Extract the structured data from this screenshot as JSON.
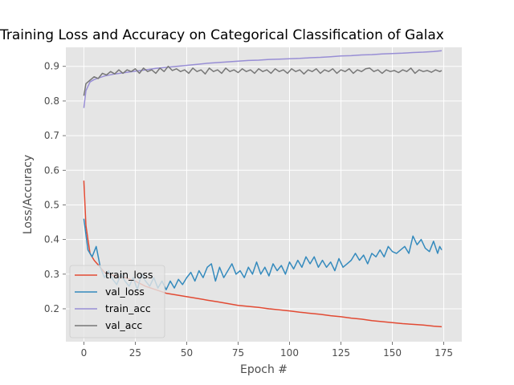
{
  "chart_data": {
    "type": "line",
    "title": "Training Loss and Accuracy on Categorical Classification of Galax",
    "xlabel": "Epoch #",
    "ylabel": "Loss/Accuracy",
    "xlim": [
      -8.75,
      183.75
    ],
    "ylim": [
      0.105,
      0.955
    ],
    "xticks": [
      0,
      25,
      50,
      75,
      100,
      125,
      150,
      175
    ],
    "xtick_labels": [
      "0",
      "25",
      "50",
      "75",
      "100",
      "125",
      "150",
      "175"
    ],
    "yticks": [
      0.2,
      0.3,
      0.4,
      0.5,
      0.6,
      0.7,
      0.8,
      0.9
    ],
    "ytick_labels": [
      "0.2",
      "0.3",
      "0.4",
      "0.5",
      "0.6",
      "0.7",
      "0.8",
      "0.9"
    ],
    "grid": true,
    "style": "ggplot",
    "legend_position": "lower-left",
    "series": [
      {
        "name": "train_loss",
        "color": "#e24a33",
        "points": [
          [
            0,
            0.57
          ],
          [
            1,
            0.44
          ],
          [
            2,
            0.4
          ],
          [
            3,
            0.36
          ],
          [
            5,
            0.34
          ],
          [
            8,
            0.32
          ],
          [
            10,
            0.305
          ],
          [
            15,
            0.295
          ],
          [
            20,
            0.29
          ],
          [
            25,
            0.28
          ],
          [
            30,
            0.265
          ],
          [
            35,
            0.255
          ],
          [
            40,
            0.245
          ],
          [
            45,
            0.24
          ],
          [
            50,
            0.235
          ],
          [
            55,
            0.23
          ],
          [
            60,
            0.225
          ],
          [
            65,
            0.22
          ],
          [
            70,
            0.215
          ],
          [
            75,
            0.21
          ],
          [
            80,
            0.207
          ],
          [
            85,
            0.204
          ],
          [
            90,
            0.2
          ],
          [
            95,
            0.197
          ],
          [
            100,
            0.194
          ],
          [
            105,
            0.19
          ],
          [
            110,
            0.187
          ],
          [
            115,
            0.184
          ],
          [
            120,
            0.18
          ],
          [
            125,
            0.177
          ],
          [
            130,
            0.173
          ],
          [
            135,
            0.17
          ],
          [
            140,
            0.166
          ],
          [
            145,
            0.163
          ],
          [
            150,
            0.16
          ],
          [
            155,
            0.157
          ],
          [
            160,
            0.155
          ],
          [
            165,
            0.153
          ],
          [
            170,
            0.15
          ],
          [
            174,
            0.148
          ]
        ]
      },
      {
        "name": "val_loss",
        "color": "#348abd",
        "points": [
          [
            0,
            0.46
          ],
          [
            2,
            0.37
          ],
          [
            4,
            0.35
          ],
          [
            6,
            0.38
          ],
          [
            8,
            0.32
          ],
          [
            10,
            0.29
          ],
          [
            12,
            0.31
          ],
          [
            14,
            0.285
          ],
          [
            16,
            0.27
          ],
          [
            18,
            0.3
          ],
          [
            20,
            0.28
          ],
          [
            22,
            0.265
          ],
          [
            24,
            0.29
          ],
          [
            26,
            0.255
          ],
          [
            28,
            0.3
          ],
          [
            30,
            0.28
          ],
          [
            32,
            0.265
          ],
          [
            34,
            0.29
          ],
          [
            36,
            0.26
          ],
          [
            38,
            0.28
          ],
          [
            40,
            0.255
          ],
          [
            42,
            0.28
          ],
          [
            44,
            0.26
          ],
          [
            46,
            0.285
          ],
          [
            48,
            0.27
          ],
          [
            50,
            0.29
          ],
          [
            52,
            0.305
          ],
          [
            54,
            0.28
          ],
          [
            56,
            0.31
          ],
          [
            58,
            0.29
          ],
          [
            60,
            0.32
          ],
          [
            62,
            0.33
          ],
          [
            64,
            0.28
          ],
          [
            66,
            0.32
          ],
          [
            68,
            0.29
          ],
          [
            70,
            0.31
          ],
          [
            72,
            0.33
          ],
          [
            74,
            0.3
          ],
          [
            76,
            0.31
          ],
          [
            78,
            0.29
          ],
          [
            80,
            0.32
          ],
          [
            82,
            0.3
          ],
          [
            84,
            0.335
          ],
          [
            86,
            0.3
          ],
          [
            88,
            0.32
          ],
          [
            90,
            0.295
          ],
          [
            92,
            0.33
          ],
          [
            94,
            0.31
          ],
          [
            96,
            0.325
          ],
          [
            98,
            0.3
          ],
          [
            100,
            0.335
          ],
          [
            102,
            0.315
          ],
          [
            104,
            0.34
          ],
          [
            106,
            0.32
          ],
          [
            108,
            0.35
          ],
          [
            110,
            0.33
          ],
          [
            112,
            0.35
          ],
          [
            114,
            0.32
          ],
          [
            116,
            0.34
          ],
          [
            118,
            0.32
          ],
          [
            120,
            0.335
          ],
          [
            122,
            0.31
          ],
          [
            124,
            0.345
          ],
          [
            126,
            0.32
          ],
          [
            128,
            0.33
          ],
          [
            130,
            0.34
          ],
          [
            132,
            0.36
          ],
          [
            134,
            0.34
          ],
          [
            136,
            0.355
          ],
          [
            138,
            0.33
          ],
          [
            140,
            0.36
          ],
          [
            142,
            0.35
          ],
          [
            144,
            0.37
          ],
          [
            146,
            0.35
          ],
          [
            148,
            0.38
          ],
          [
            150,
            0.365
          ],
          [
            152,
            0.36
          ],
          [
            154,
            0.37
          ],
          [
            156,
            0.38
          ],
          [
            158,
            0.36
          ],
          [
            160,
            0.41
          ],
          [
            162,
            0.385
          ],
          [
            164,
            0.4
          ],
          [
            166,
            0.375
          ],
          [
            168,
            0.365
          ],
          [
            170,
            0.395
          ],
          [
            172,
            0.36
          ],
          [
            173,
            0.38
          ],
          [
            174,
            0.37
          ]
        ]
      },
      {
        "name": "train_acc",
        "color": "#988ed5",
        "points": [
          [
            0,
            0.78
          ],
          [
            1,
            0.83
          ],
          [
            3,
            0.855
          ],
          [
            5,
            0.862
          ],
          [
            10,
            0.872
          ],
          [
            15,
            0.878
          ],
          [
            20,
            0.882
          ],
          [
            25,
            0.886
          ],
          [
            30,
            0.89
          ],
          [
            35,
            0.894
          ],
          [
            40,
            0.897
          ],
          [
            45,
            0.9
          ],
          [
            50,
            0.903
          ],
          [
            55,
            0.906
          ],
          [
            60,
            0.909
          ],
          [
            65,
            0.911
          ],
          [
            70,
            0.913
          ],
          [
            75,
            0.915
          ],
          [
            80,
            0.917
          ],
          [
            85,
            0.918
          ],
          [
            90,
            0.92
          ],
          [
            95,
            0.921
          ],
          [
            100,
            0.922
          ],
          [
            105,
            0.923
          ],
          [
            110,
            0.925
          ],
          [
            115,
            0.926
          ],
          [
            120,
            0.928
          ],
          [
            125,
            0.93
          ],
          [
            130,
            0.931
          ],
          [
            135,
            0.933
          ],
          [
            140,
            0.934
          ],
          [
            145,
            0.936
          ],
          [
            150,
            0.937
          ],
          [
            155,
            0.938
          ],
          [
            160,
            0.94
          ],
          [
            165,
            0.941
          ],
          [
            170,
            0.943
          ],
          [
            174,
            0.945
          ]
        ]
      },
      {
        "name": "val_acc",
        "color": "#777777",
        "points": [
          [
            0,
            0.815
          ],
          [
            1,
            0.85
          ],
          [
            3,
            0.86
          ],
          [
            5,
            0.87
          ],
          [
            7,
            0.865
          ],
          [
            9,
            0.88
          ],
          [
            11,
            0.875
          ],
          [
            13,
            0.885
          ],
          [
            15,
            0.878
          ],
          [
            17,
            0.89
          ],
          [
            19,
            0.88
          ],
          [
            21,
            0.89
          ],
          [
            23,
            0.885
          ],
          [
            25,
            0.893
          ],
          [
            27,
            0.88
          ],
          [
            29,
            0.895
          ],
          [
            31,
            0.885
          ],
          [
            33,
            0.89
          ],
          [
            35,
            0.88
          ],
          [
            37,
            0.895
          ],
          [
            39,
            0.885
          ],
          [
            41,
            0.9
          ],
          [
            43,
            0.888
          ],
          [
            45,
            0.893
          ],
          [
            47,
            0.885
          ],
          [
            49,
            0.89
          ],
          [
            51,
            0.88
          ],
          [
            53,
            0.895
          ],
          [
            55,
            0.885
          ],
          [
            57,
            0.89
          ],
          [
            59,
            0.878
          ],
          [
            61,
            0.895
          ],
          [
            63,
            0.885
          ],
          [
            65,
            0.89
          ],
          [
            67,
            0.88
          ],
          [
            69,
            0.895
          ],
          [
            71,
            0.885
          ],
          [
            73,
            0.89
          ],
          [
            75,
            0.882
          ],
          [
            77,
            0.893
          ],
          [
            79,
            0.885
          ],
          [
            81,
            0.89
          ],
          [
            83,
            0.88
          ],
          [
            85,
            0.893
          ],
          [
            87,
            0.885
          ],
          [
            89,
            0.89
          ],
          [
            91,
            0.88
          ],
          [
            93,
            0.893
          ],
          [
            95,
            0.885
          ],
          [
            97,
            0.89
          ],
          [
            99,
            0.88
          ],
          [
            101,
            0.893
          ],
          [
            103,
            0.885
          ],
          [
            105,
            0.89
          ],
          [
            107,
            0.878
          ],
          [
            109,
            0.89
          ],
          [
            111,
            0.885
          ],
          [
            113,
            0.893
          ],
          [
            115,
            0.88
          ],
          [
            117,
            0.89
          ],
          [
            119,
            0.885
          ],
          [
            121,
            0.893
          ],
          [
            123,
            0.88
          ],
          [
            125,
            0.89
          ],
          [
            127,
            0.885
          ],
          [
            129,
            0.893
          ],
          [
            131,
            0.88
          ],
          [
            133,
            0.89
          ],
          [
            135,
            0.885
          ],
          [
            137,
            0.893
          ],
          [
            139,
            0.895
          ],
          [
            141,
            0.885
          ],
          [
            143,
            0.89
          ],
          [
            145,
            0.88
          ],
          [
            147,
            0.89
          ],
          [
            149,
            0.885
          ],
          [
            151,
            0.888
          ],
          [
            153,
            0.882
          ],
          [
            155,
            0.89
          ],
          [
            157,
            0.885
          ],
          [
            159,
            0.895
          ],
          [
            161,
            0.88
          ],
          [
            163,
            0.89
          ],
          [
            165,
            0.885
          ],
          [
            167,
            0.888
          ],
          [
            169,
            0.883
          ],
          [
            171,
            0.89
          ],
          [
            173,
            0.885
          ],
          [
            174,
            0.888
          ]
        ]
      }
    ]
  }
}
